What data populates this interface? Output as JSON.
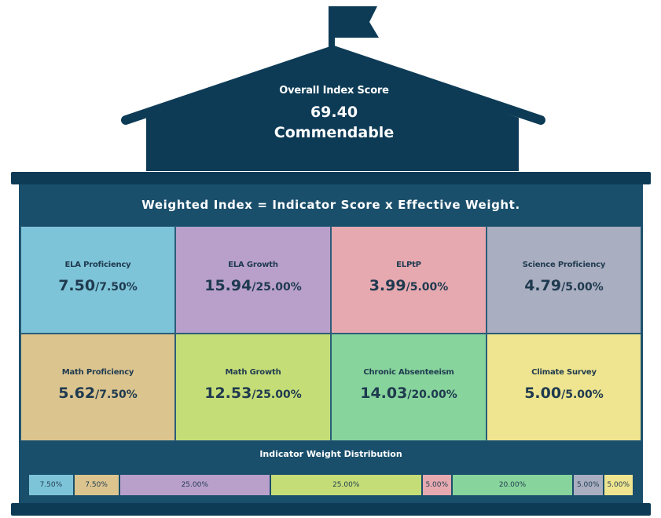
{
  "header": {
    "title": "Overall Index Score",
    "score": "69.40",
    "rating": "Commendable"
  },
  "formula": "Weighted Index = Indicator Score x Effective Weight.",
  "indicators": [
    {
      "name": "ELA Proficiency",
      "score": "7.50",
      "weight": "/7.50%",
      "color": "#7ec4d8"
    },
    {
      "name": "ELA Growth",
      "score": "15.94",
      "weight": "/25.00%",
      "color": "#b9a0cb"
    },
    {
      "name": "ELPtP",
      "score": "3.99",
      "weight": "/5.00%",
      "color": "#e6a9b0"
    },
    {
      "name": "Science Proficiency",
      "score": "4.79",
      "weight": "/5.00%",
      "color": "#a9aec0"
    },
    {
      "name": "Math Proficiency",
      "score": "5.62",
      "weight": "/7.50%",
      "color": "#dbc48e"
    },
    {
      "name": "Math Growth",
      "score": "12.53",
      "weight": "/25.00%",
      "color": "#c5dd77"
    },
    {
      "name": "Chronic Absenteeism",
      "score": "14.03",
      "weight": "/20.00%",
      "color": "#87d49c"
    },
    {
      "name": "Climate Survey",
      "score": "5.00",
      "weight": "/5.00%",
      "color": "#efe48f"
    }
  ],
  "distribution": {
    "title": "Indicator Weight Distribution",
    "segments": [
      {
        "label": "7.50%",
        "weight": 7.5,
        "color": "#7ec4d8"
      },
      {
        "label": "7.50%",
        "weight": 7.5,
        "color": "#dbc48e"
      },
      {
        "label": "25.00%",
        "weight": 25,
        "color": "#b9a0cb"
      },
      {
        "label": "25.00%",
        "weight": 25,
        "color": "#c5dd77"
      },
      {
        "label": "5.00%",
        "weight": 5,
        "color": "#e6a9b0"
      },
      {
        "label": "20.00%",
        "weight": 20,
        "color": "#87d49c"
      },
      {
        "label": "5.00%",
        "weight": 5,
        "color": "#a9aec0"
      },
      {
        "label": "5.00%",
        "weight": 5,
        "color": "#efe48f"
      }
    ]
  }
}
